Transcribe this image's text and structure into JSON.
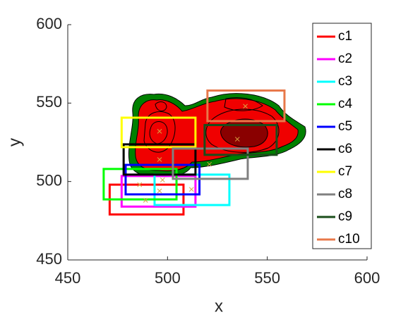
{
  "chart_data": {
    "type": "rectangles",
    "xlabel": "x",
    "ylabel": "y",
    "xlim": [
      450,
      600
    ],
    "ylim": [
      450,
      600
    ],
    "xticks": [
      450,
      500,
      550,
      600
    ],
    "yticks": [
      450,
      500,
      550,
      600
    ],
    "marker_color": "#d9a441",
    "series": [
      {
        "name": "c1",
        "color": "#ff0000",
        "x": [
          471,
          508
        ],
        "y": [
          479,
          498
        ],
        "marker": [
          489,
          488
        ]
      },
      {
        "name": "c2",
        "color": "#ff00ff",
        "x": [
          477,
          514
        ],
        "y": [
          484,
          503.5
        ],
        "marker": [
          496,
          494
        ]
      },
      {
        "name": "c3",
        "color": "#00ffff",
        "x": [
          493.5,
          531
        ],
        "y": [
          485,
          504.4
        ],
        "marker": [
          512,
          495
        ]
      },
      {
        "name": "c4",
        "color": "#00ff00",
        "x": [
          468,
          504.5
        ],
        "y": [
          488.6,
          508
        ],
        "marker": [
          486,
          498
        ]
      },
      {
        "name": "c5",
        "color": "#0000ff",
        "x": [
          479,
          516
        ],
        "y": [
          491.8,
          510.6
        ],
        "marker": [
          497.5,
          501
        ]
      },
      {
        "name": "c6",
        "color": "#000000",
        "x": [
          478,
          514
        ],
        "y": [
          504.4,
          523.7
        ],
        "marker": [
          496,
          514
        ]
      },
      {
        "name": "c7",
        "color": "#ffff00",
        "x": [
          477,
          514
        ],
        "y": [
          521.9,
          540.7
        ],
        "marker": [
          496,
          532
        ]
      },
      {
        "name": "c8",
        "color": "#808080",
        "x": [
          502.7,
          540.2
        ],
        "y": [
          501.7,
          521
        ],
        "marker": [
          521,
          511
        ]
      },
      {
        "name": "c9",
        "color": "#1a4d1a",
        "x": [
          518.6,
          554.7
        ],
        "y": [
          517,
          536
        ],
        "marker": [
          535,
          527
        ]
      },
      {
        "name": "c10",
        "color": "#e8784a",
        "x": [
          520,
          558.6
        ],
        "y": [
          538.5,
          558
        ],
        "marker": [
          539,
          548
        ]
      }
    ]
  }
}
